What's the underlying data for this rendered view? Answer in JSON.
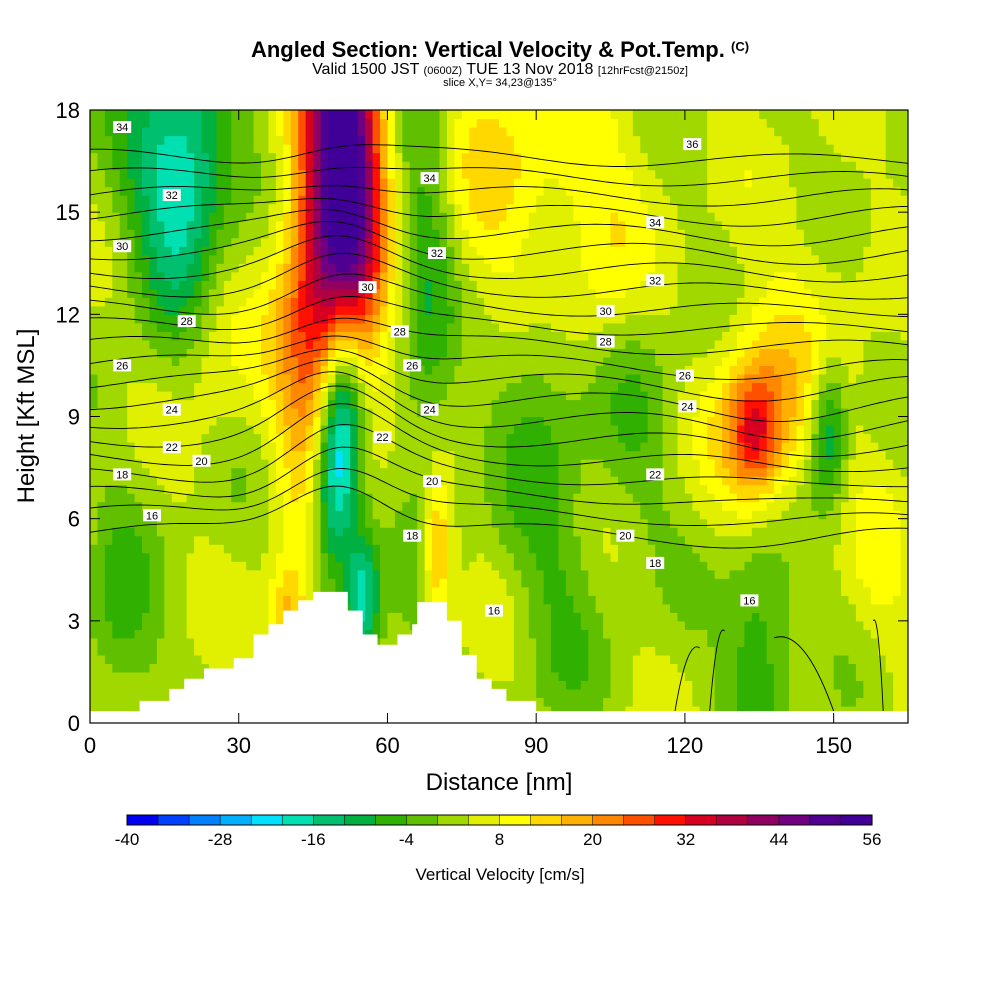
{
  "header": {
    "title": "Angled Section: Vertical Velocity & Pot.Temp.",
    "title_tag": "(C)",
    "subtitle_a": "Valid 1500 JST",
    "subtitle_b": "(0600Z)",
    "subtitle_c": "TUE 13 Nov 2018",
    "subtitle_d": "[12hrFcst@2150z]",
    "slice": "slice X,Y= 34,23@135°"
  },
  "chart_data": {
    "type": "heatmap",
    "xlabel": "Distance [nm]",
    "ylabel": "Height [Kft MSL]",
    "xlim": [
      0,
      165
    ],
    "ylim": [
      0,
      18
    ],
    "xticks": [
      0,
      30,
      60,
      90,
      120,
      150
    ],
    "yticks": [
      0,
      3,
      6,
      9,
      12,
      15,
      18
    ],
    "colorbar": {
      "label": "Vertical Velocity [cm/s]",
      "min": -40,
      "max": 56,
      "step": 4,
      "tick_labels": [
        "-40",
        "-28",
        "-16",
        "-4",
        "8",
        "20",
        "32",
        "44",
        "56"
      ],
      "colors": [
        "#0000f0",
        "#0040ff",
        "#0080ff",
        "#00b0ff",
        "#00e0ff",
        "#00e0b0",
        "#00c070",
        "#00b040",
        "#30b000",
        "#60c000",
        "#a0d800",
        "#e0f000",
        "#ffff00",
        "#ffd800",
        "#ffb000",
        "#ff8800",
        "#ff5000",
        "#ff1000",
        "#d80020",
        "#b00040",
        "#900060",
        "#700080",
        "#500090",
        "#400098"
      ]
    },
    "terrain": [
      [
        0,
        0.35
      ],
      [
        10,
        0.35
      ],
      [
        10,
        0.65
      ],
      [
        16,
        0.65
      ],
      [
        16,
        1.0
      ],
      [
        19,
        1.0
      ],
      [
        19,
        1.3
      ],
      [
        23,
        1.3
      ],
      [
        23,
        1.6
      ],
      [
        29,
        1.6
      ],
      [
        29,
        1.9
      ],
      [
        33,
        1.9
      ],
      [
        33,
        2.6
      ],
      [
        36,
        2.6
      ],
      [
        36,
        2.9
      ],
      [
        39,
        2.9
      ],
      [
        39,
        3.3
      ],
      [
        42,
        3.3
      ],
      [
        42,
        3.6
      ],
      [
        45,
        3.6
      ],
      [
        45,
        3.85
      ],
      [
        52,
        3.85
      ],
      [
        52,
        3.3
      ],
      [
        55,
        3.3
      ],
      [
        55,
        2.6
      ],
      [
        58,
        2.6
      ],
      [
        58,
        2.3
      ],
      [
        62,
        2.3
      ],
      [
        62,
        2.6
      ],
      [
        65,
        2.6
      ],
      [
        65,
        2.9
      ],
      [
        66,
        2.9
      ],
      [
        66,
        3.55
      ],
      [
        72,
        3.55
      ],
      [
        72,
        3.0
      ],
      [
        75,
        3.0
      ],
      [
        75,
        2.0
      ],
      [
        78,
        2.0
      ],
      [
        78,
        1.3
      ],
      [
        81,
        1.3
      ],
      [
        81,
        1.0
      ],
      [
        84,
        1.0
      ],
      [
        84,
        0.65
      ],
      [
        90,
        0.65
      ],
      [
        90,
        0.35
      ],
      [
        165,
        0.35
      ]
    ],
    "theta_levels": [
      16,
      17,
      18,
      19,
      20,
      21,
      22,
      23,
      24,
      25,
      26,
      27,
      28,
      29,
      30,
      31,
      32,
      33,
      34,
      35,
      36
    ],
    "contour_labels": [
      {
        "text": "34",
        "x": 6.5,
        "y": 17.5
      },
      {
        "text": "32",
        "x": 16.5,
        "y": 15.5
      },
      {
        "text": "30",
        "x": 6.5,
        "y": 14.0
      },
      {
        "text": "28",
        "x": 19.5,
        "y": 11.8
      },
      {
        "text": "26",
        "x": 6.5,
        "y": 10.5
      },
      {
        "text": "24",
        "x": 16.5,
        "y": 9.2
      },
      {
        "text": "22",
        "x": 16.5,
        "y": 8.1
      },
      {
        "text": "20",
        "x": 22.5,
        "y": 7.7
      },
      {
        "text": "18",
        "x": 6.5,
        "y": 7.3
      },
      {
        "text": "16",
        "x": 12.5,
        "y": 6.1
      },
      {
        "text": "34",
        "x": 68.5,
        "y": 16.0
      },
      {
        "text": "32",
        "x": 70.0,
        "y": 13.8
      },
      {
        "text": "30",
        "x": 56.0,
        "y": 12.8
      },
      {
        "text": "28",
        "x": 62.5,
        "y": 11.5
      },
      {
        "text": "26",
        "x": 65.0,
        "y": 10.5
      },
      {
        "text": "24",
        "x": 68.5,
        "y": 9.2
      },
      {
        "text": "22",
        "x": 59.0,
        "y": 8.4
      },
      {
        "text": "20",
        "x": 69.0,
        "y": 7.1
      },
      {
        "text": "18",
        "x": 65.0,
        "y": 5.5
      },
      {
        "text": "16",
        "x": 81.5,
        "y": 3.3
      },
      {
        "text": "36",
        "x": 121.5,
        "y": 17.0
      },
      {
        "text": "34",
        "x": 114.0,
        "y": 14.7
      },
      {
        "text": "32",
        "x": 114.0,
        "y": 13.0
      },
      {
        "text": "30",
        "x": 104.0,
        "y": 12.1
      },
      {
        "text": "28",
        "x": 104.0,
        "y": 11.2
      },
      {
        "text": "26",
        "x": 120.0,
        "y": 10.2
      },
      {
        "text": "24",
        "x": 120.5,
        "y": 9.3
      },
      {
        "text": "22",
        "x": 114.0,
        "y": 7.3
      },
      {
        "text": "20",
        "x": 108.0,
        "y": 5.5
      },
      {
        "text": "18",
        "x": 114.0,
        "y": 4.7
      },
      {
        "text": "16",
        "x": 133.0,
        "y": 3.6
      }
    ],
    "vv_features": [
      {
        "x": 52,
        "y": 16.5,
        "sx": 5,
        "sy": 4.0,
        "v": 46
      },
      {
        "x": 48,
        "y": 15.0,
        "sx": 6,
        "sy": 6.5,
        "v": 16
      },
      {
        "x": 43,
        "y": 11.0,
        "sx": 5,
        "sy": 3.5,
        "v": 12
      },
      {
        "x": 51,
        "y": 8.8,
        "sx": 3,
        "sy": 2.5,
        "v": -30
      },
      {
        "x": 48,
        "y": 6.5,
        "sx": 3,
        "sy": 2.0,
        "v": -18
      },
      {
        "x": 55,
        "y": 3.6,
        "sx": 2.5,
        "sy": 1.5,
        "v": -22
      },
      {
        "x": 18,
        "y": 16.5,
        "sx": 8,
        "sy": 2.5,
        "v": -18
      },
      {
        "x": 20,
        "y": 14.5,
        "sx": 6,
        "sy": 3.0,
        "v": -9
      },
      {
        "x": 68,
        "y": 13.5,
        "sx": 4,
        "sy": 6.0,
        "v": -10
      },
      {
        "x": 85,
        "y": 16.0,
        "sx": 10,
        "sy": 3.0,
        "v": 10
      },
      {
        "x": 135,
        "y": 8.7,
        "sx": 6,
        "sy": 2.0,
        "v": 20
      },
      {
        "x": 134,
        "y": 8.5,
        "sx": 3,
        "sy": 1.0,
        "v": 12
      },
      {
        "x": 149,
        "y": 8.6,
        "sx": 2.5,
        "sy": 1.5,
        "v": -16
      },
      {
        "x": 135,
        "y": 2.5,
        "sx": 5,
        "sy": 2.5,
        "v": -12
      },
      {
        "x": 70,
        "y": 5.0,
        "sx": 2,
        "sy": 1.5,
        "v": 18
      },
      {
        "x": 40,
        "y": 3.2,
        "sx": 3,
        "sy": 1.0,
        "v": 14
      },
      {
        "x": 25,
        "y": 12.0,
        "sx": 5,
        "sy": 2.5,
        "v": 8
      },
      {
        "x": 145,
        "y": 12.0,
        "sx": 10,
        "sy": 3.0,
        "v": 4
      },
      {
        "x": 105,
        "y": 14.0,
        "sx": 8,
        "sy": 3.0,
        "v": 8
      },
      {
        "x": 90,
        "y": 10.0,
        "sx": 6,
        "sy": 3.0,
        "v": -8
      },
      {
        "x": 110,
        "y": 10.0,
        "sx": 6,
        "sy": 3.0,
        "v": -7
      },
      {
        "x": 6,
        "y": 3.0,
        "sx": 5,
        "sy": 2.5,
        "v": -8
      },
      {
        "x": 160,
        "y": 5.0,
        "sx": 5,
        "sy": 3.0,
        "v": 4
      },
      {
        "x": 95,
        "y": 4.0,
        "sx": 6,
        "sy": 3.0,
        "v": -6
      }
    ]
  }
}
